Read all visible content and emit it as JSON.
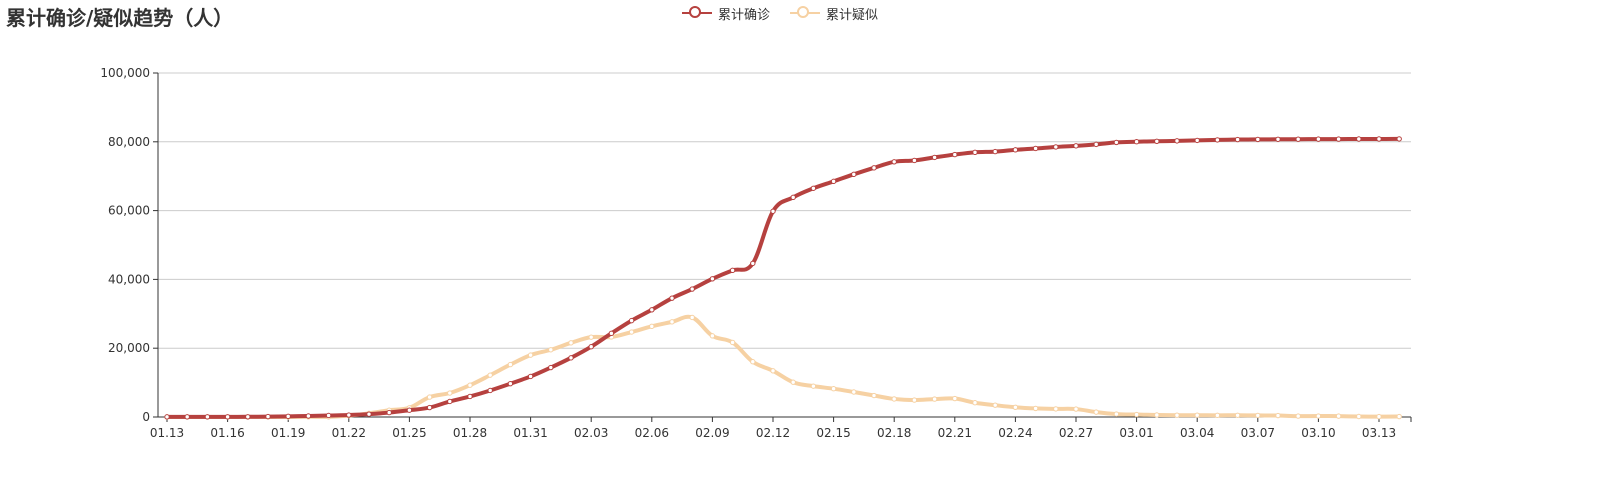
{
  "title": "累计确诊/疑似趋势（人）",
  "colors": {
    "confirmed": "#b6413f",
    "suspected": "#f6d1a3",
    "grid": "#cccccc",
    "axis": "#333333"
  },
  "chart_data": {
    "type": "line",
    "title": "累计确诊/疑似趋势（人）",
    "xlabel": "",
    "ylabel": "",
    "ylim": [
      0,
      100000
    ],
    "yticks": [
      "0",
      "20,000",
      "40,000",
      "60,000",
      "80,000",
      "100,000"
    ],
    "yticks_values": [
      0,
      20000,
      40000,
      60000,
      80000,
      100000
    ],
    "grid": true,
    "legend_position": "top-center",
    "x": [
      "01.13",
      "01.14",
      "01.15",
      "01.16",
      "01.17",
      "01.18",
      "01.19",
      "01.20",
      "01.21",
      "01.22",
      "01.23",
      "01.24",
      "01.25",
      "01.26",
      "01.27",
      "01.28",
      "01.29",
      "01.30",
      "01.31",
      "02.01",
      "02.02",
      "02.03",
      "02.04",
      "02.05",
      "02.06",
      "02.07",
      "02.08",
      "02.09",
      "02.10",
      "02.11",
      "02.12",
      "02.13",
      "02.14",
      "02.15",
      "02.16",
      "02.17",
      "02.18",
      "02.19",
      "02.20",
      "02.21",
      "02.22",
      "02.23",
      "02.24",
      "02.25",
      "02.26",
      "02.27",
      "02.28",
      "02.29",
      "03.01",
      "03.02",
      "03.03",
      "03.04",
      "03.05",
      "03.06",
      "03.07",
      "03.08",
      "03.09",
      "03.10",
      "03.11",
      "03.12",
      "03.13",
      "03.14"
    ],
    "x_tick_labels": [
      "01.13",
      "01.16",
      "01.19",
      "01.22",
      "01.25",
      "01.28",
      "01.31",
      "02.03",
      "02.06",
      "02.09",
      "02.12",
      "02.15",
      "02.18",
      "02.21",
      "02.24",
      "02.27",
      "03.01",
      "03.04",
      "03.07",
      "03.10",
      "03.13"
    ],
    "series": [
      {
        "name": "累计确诊",
        "values": [
          41,
          41,
          41,
          45,
          62,
          121,
          198,
          291,
          440,
          571,
          830,
          1287,
          1975,
          2744,
          4515,
          5974,
          7711,
          9692,
          11791,
          14380,
          17205,
          20438,
          24324,
          28018,
          31161,
          34546,
          37198,
          40171,
          42638,
          44653,
          59804,
          63851,
          66492,
          68500,
          70548,
          72436,
          74185,
          74576,
          75465,
          76288,
          76936,
          77150,
          77658,
          78064,
          78497,
          78824,
          79251,
          79824,
          80026,
          80151,
          80270,
          80409,
          80552,
          80651,
          80695,
          80735,
          80754,
          80778,
          80793,
          80813,
          80824,
          80844
        ]
      },
      {
        "name": "累计疑似",
        "values": [
          0,
          0,
          0,
          0,
          0,
          0,
          0,
          54,
          37,
          393,
          1072,
          1965,
          2684,
          5794,
          6973,
          9239,
          12167,
          15238,
          17988,
          19544,
          21558,
          23214,
          23260,
          24702,
          26359,
          27657,
          28942,
          23589,
          21675,
          16067,
          13435,
          10109,
          8969,
          8228,
          7264,
          6242,
          5248,
          4922,
          5206,
          5365,
          4148,
          3434,
          2824,
          2491,
          2358,
          2308,
          1418,
          851,
          715,
          587,
          520,
          522,
          482,
          502,
          458,
          421,
          260,
          285,
          253,
          147,
          115,
          134
        ]
      }
    ]
  }
}
